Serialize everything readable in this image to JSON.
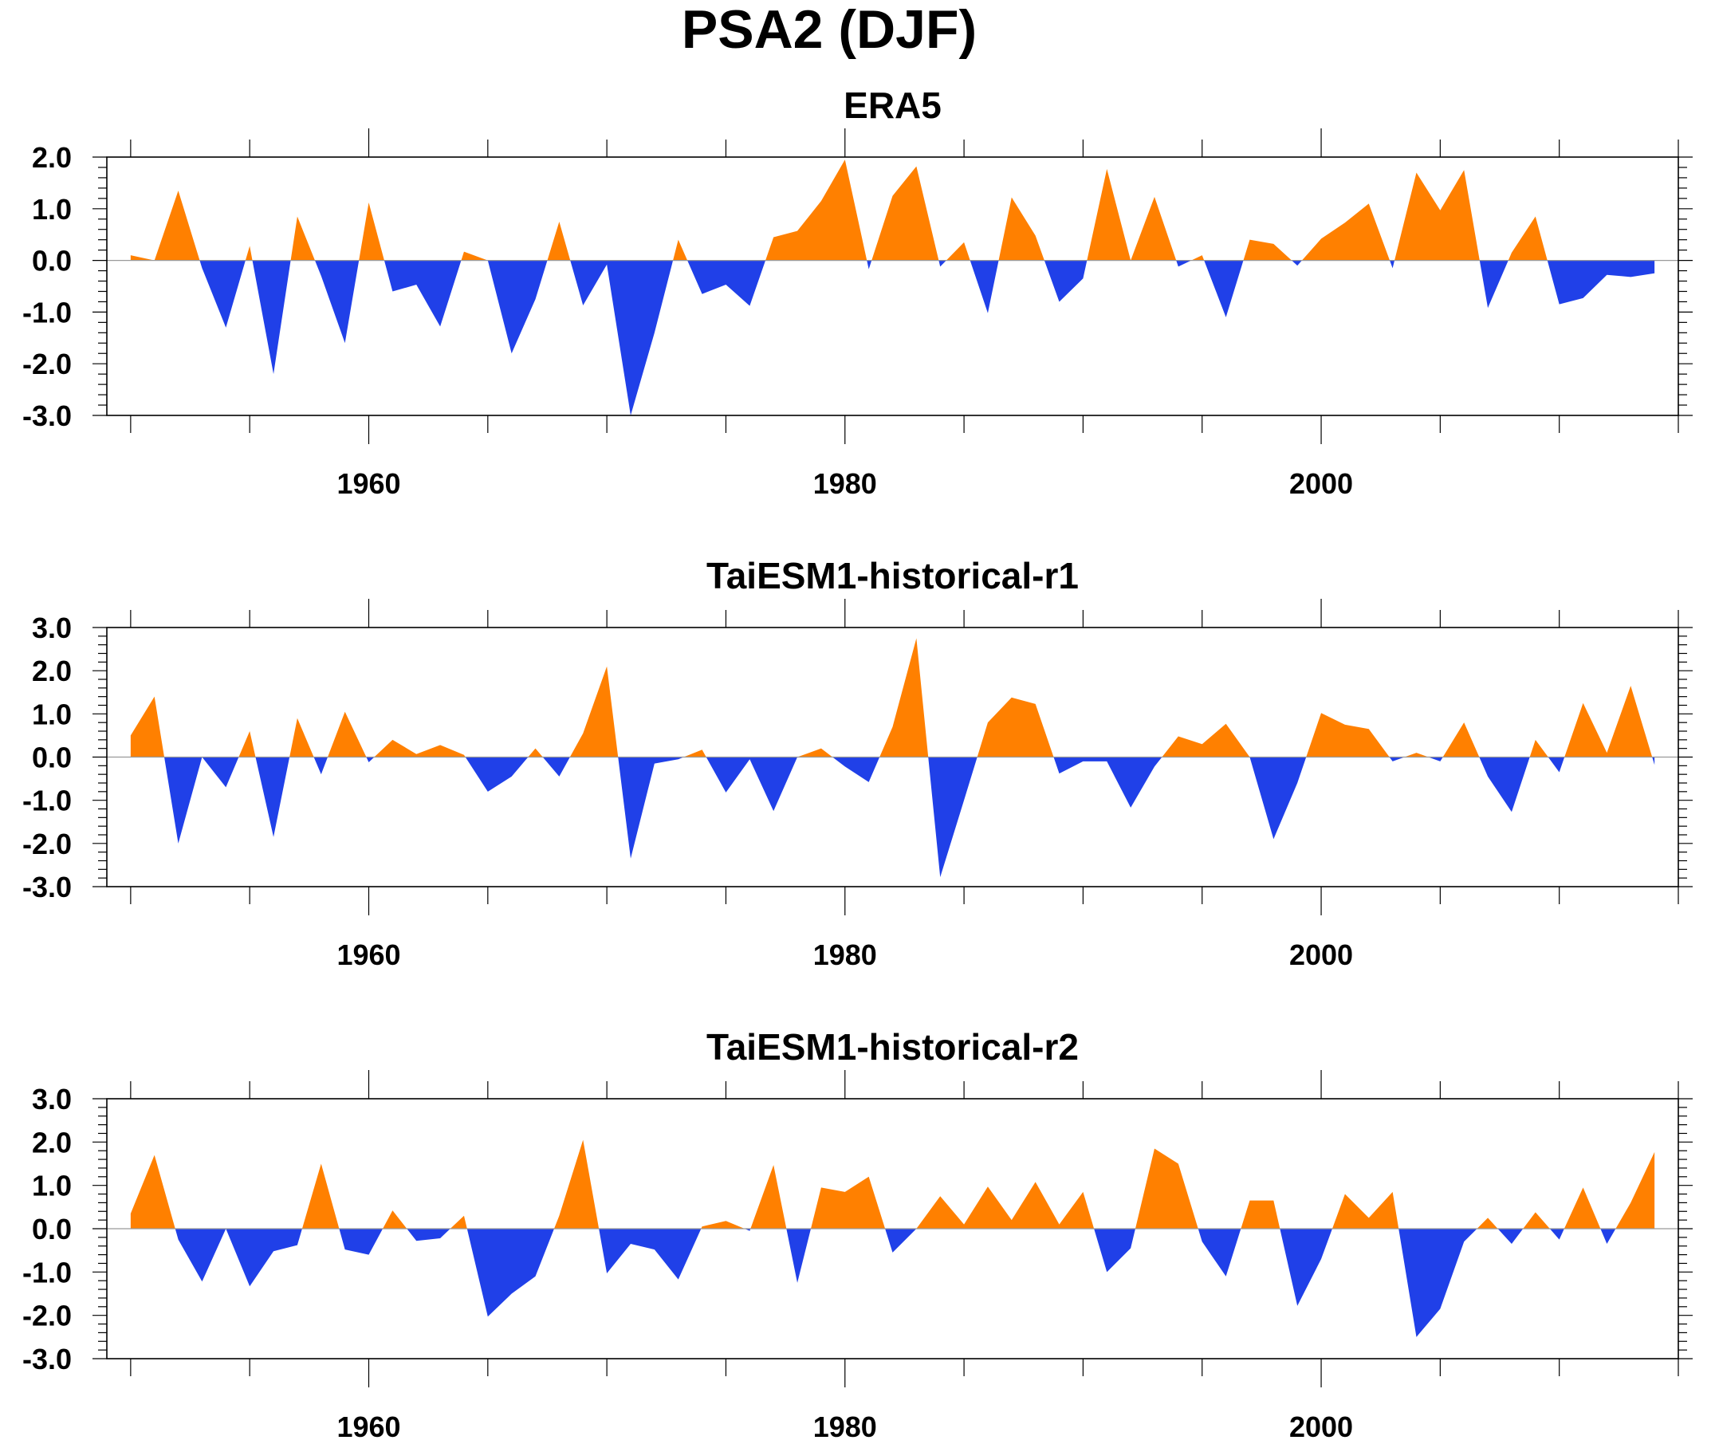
{
  "title": "PSA2 (DJF)",
  "colors": {
    "positive": "#ff8000",
    "negative": "#2040e8",
    "axis": "#000000"
  },
  "chart_data": [
    {
      "type": "area",
      "title": "ERA5",
      "xlabel": "",
      "ylabel": "",
      "xlim": [
        1949,
        2015
      ],
      "ylim": [
        -3.0,
        2.0
      ],
      "yticks": [
        "2.0",
        "1.0",
        "0.0",
        "-1.0",
        "-2.0",
        "-3.0"
      ],
      "xticks": [
        "1960",
        "1980",
        "2000"
      ],
      "x": [
        1950,
        1951,
        1952,
        1953,
        1954,
        1955,
        1956,
        1957,
        1958,
        1959,
        1960,
        1961,
        1962,
        1963,
        1964,
        1965,
        1966,
        1967,
        1968,
        1969,
        1970,
        1971,
        1972,
        1973,
        1974,
        1975,
        1976,
        1977,
        1978,
        1979,
        1980,
        1981,
        1982,
        1983,
        1984,
        1985,
        1986,
        1987,
        1988,
        1989,
        1990,
        1991,
        1992,
        1993,
        1994,
        1995,
        1996,
        1997,
        1998,
        1999,
        2000,
        2001,
        2002,
        2003,
        2004,
        2005,
        2006,
        2007,
        2008,
        2009,
        2010,
        2011,
        2012,
        2013,
        2014
      ],
      "values": [
        0.1,
        0.0,
        1.35,
        -0.15,
        -1.3,
        0.28,
        -2.2,
        0.85,
        -0.3,
        -1.6,
        1.12,
        -0.6,
        -0.47,
        -1.28,
        0.17,
        0.0,
        -1.8,
        -0.75,
        0.75,
        -0.87,
        -0.08,
        -3.0,
        -1.4,
        0.4,
        -0.65,
        -0.47,
        -0.88,
        0.45,
        0.57,
        1.15,
        1.95,
        -0.17,
        1.25,
        1.82,
        -0.12,
        0.35,
        -1.02,
        1.22,
        0.48,
        -0.8,
        -0.35,
        1.77,
        0.0,
        1.23,
        -0.12,
        0.1,
        -1.1,
        0.4,
        0.32,
        -0.1,
        0.42,
        0.73,
        1.1,
        -0.15,
        1.7,
        0.97,
        1.75,
        -0.92,
        0.15,
        0.85,
        -0.85,
        -0.73,
        -0.28,
        -0.32,
        -0.25
      ]
    },
    {
      "type": "area",
      "title": "TaiESM1-historical-r1",
      "xlabel": "",
      "ylabel": "",
      "xlim": [
        1949,
        2015
      ],
      "ylim": [
        -3.0,
        3.0
      ],
      "yticks": [
        "3.0",
        "2.0",
        "1.0",
        "0.0",
        "-1.0",
        "-2.0",
        "-3.0"
      ],
      "xticks": [
        "1960",
        "1980",
        "2000"
      ],
      "x": [
        1950,
        1951,
        1952,
        1953,
        1954,
        1955,
        1956,
        1957,
        1958,
        1959,
        1960,
        1961,
        1962,
        1963,
        1964,
        1965,
        1966,
        1967,
        1968,
        1969,
        1970,
        1971,
        1972,
        1973,
        1974,
        1975,
        1976,
        1977,
        1978,
        1979,
        1980,
        1981,
        1982,
        1983,
        1984,
        1985,
        1986,
        1987,
        1988,
        1989,
        1990,
        1991,
        1992,
        1993,
        1994,
        1995,
        1996,
        1997,
        1998,
        1999,
        2000,
        2001,
        2002,
        2003,
        2004,
        2005,
        2006,
        2007,
        2008,
        2009,
        2010,
        2011,
        2012,
        2013,
        2014
      ],
      "values": [
        0.5,
        1.4,
        -2.0,
        0.0,
        -0.7,
        0.6,
        -1.85,
        0.9,
        -0.4,
        1.05,
        -0.12,
        0.4,
        0.07,
        0.28,
        0.05,
        -0.8,
        -0.45,
        0.2,
        -0.45,
        0.55,
        2.1,
        -2.35,
        -0.15,
        -0.05,
        0.17,
        -0.82,
        -0.05,
        -1.25,
        0.0,
        0.2,
        -0.22,
        -0.58,
        0.7,
        2.75,
        -2.78,
        -1.0,
        0.8,
        1.38,
        1.23,
        -0.38,
        -0.1,
        -0.1,
        -1.17,
        -0.22,
        0.48,
        0.3,
        0.77,
        0.0,
        -1.9,
        -0.6,
        1.02,
        0.75,
        0.65,
        -0.1,
        0.1,
        -0.1,
        0.8,
        -0.45,
        -1.27,
        0.4,
        -0.35,
        1.25,
        0.1,
        1.65,
        -0.18
      ]
    },
    {
      "type": "area",
      "title": "TaiESM1-historical-r2",
      "xlabel": "",
      "ylabel": "",
      "xlim": [
        1949,
        2015
      ],
      "ylim": [
        -3.0,
        3.0
      ],
      "yticks": [
        "3.0",
        "2.0",
        "1.0",
        "0.0",
        "-1.0",
        "-2.0",
        "-3.0"
      ],
      "xticks": [
        "1960",
        "1980",
        "2000"
      ],
      "x": [
        1950,
        1951,
        1952,
        1953,
        1954,
        1955,
        1956,
        1957,
        1958,
        1959,
        1960,
        1961,
        1962,
        1963,
        1964,
        1965,
        1966,
        1967,
        1968,
        1969,
        1970,
        1971,
        1972,
        1973,
        1974,
        1975,
        1976,
        1977,
        1978,
        1979,
        1980,
        1981,
        1982,
        1983,
        1984,
        1985,
        1986,
        1987,
        1988,
        1989,
        1990,
        1991,
        1992,
        1993,
        1994,
        1995,
        1996,
        1997,
        1998,
        1999,
        2000,
        2001,
        2002,
        2003,
        2004,
        2005,
        2006,
        2007,
        2008,
        2009,
        2010,
        2011,
        2012,
        2013,
        2014
      ],
      "values": [
        0.35,
        1.7,
        -0.25,
        -1.22,
        0.0,
        -1.33,
        -0.52,
        -0.38,
        1.5,
        -0.48,
        -0.6,
        0.42,
        -0.28,
        -0.22,
        0.3,
        -2.03,
        -1.5,
        -1.1,
        0.3,
        2.05,
        -1.03,
        -0.35,
        -0.48,
        -1.17,
        0.05,
        0.18,
        -0.05,
        1.47,
        -1.25,
        0.95,
        0.85,
        1.2,
        -0.55,
        0.0,
        0.75,
        0.1,
        0.97,
        0.2,
        1.08,
        0.1,
        0.85,
        -1.0,
        -0.45,
        1.85,
        1.5,
        -0.3,
        -1.1,
        0.65,
        0.65,
        -1.78,
        -0.7,
        0.8,
        0.25,
        0.85,
        -2.5,
        -1.85,
        -0.3,
        0.25,
        -0.35,
        0.38,
        -0.25,
        0.95,
        -0.35,
        0.6,
        1.77
      ]
    }
  ]
}
